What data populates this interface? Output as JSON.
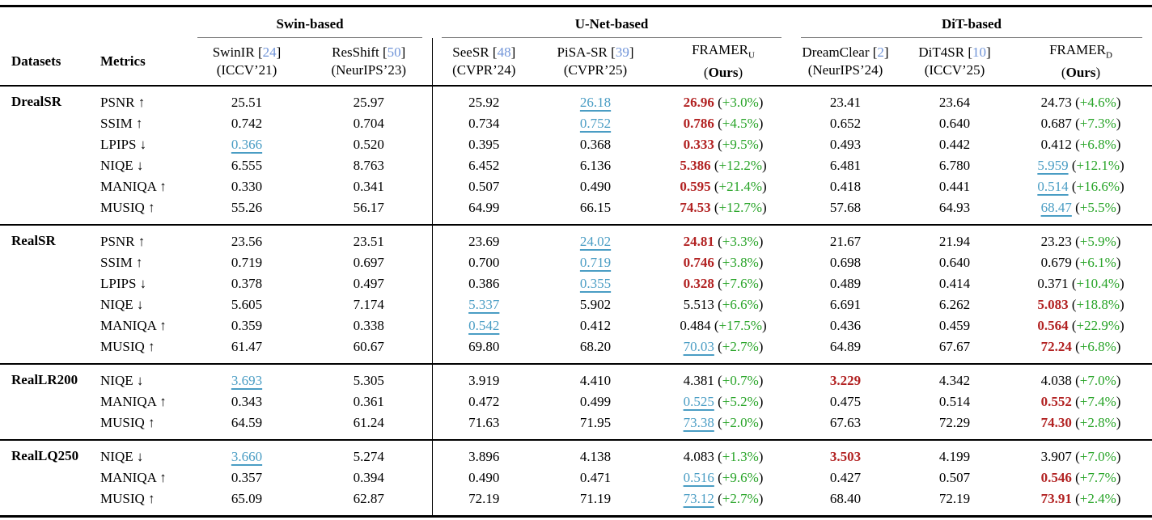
{
  "colors": {
    "best": "#b22222",
    "second": "#4a9dc4",
    "percent": "#28a428",
    "citation": "#7094d8"
  },
  "table": {
    "corner": {
      "datasets": "Datasets",
      "metrics": "Metrics"
    },
    "groups": [
      {
        "label": "Swin-based",
        "span": 2
      },
      {
        "label": "U-Net-based",
        "span": 3
      },
      {
        "label": "DiT-based",
        "span": 3
      }
    ],
    "methods": [
      {
        "name": "SwinIR",
        "cite": "24",
        "venue": "(ICCV’21)"
      },
      {
        "name": "ResShift",
        "cite": "50",
        "venue": "(NeurIPS’23)"
      },
      {
        "name": "SeeSR",
        "cite": "48",
        "venue": "(CVPR’24)"
      },
      {
        "name": "PiSA-SR",
        "cite": "39",
        "venue": "(CVPR’25)"
      },
      {
        "name": "FRAMER",
        "subscript": "U",
        "venue_prefix": "(",
        "venue_bold": "Ours",
        "venue_suffix": ")"
      },
      {
        "name": "DreamClear",
        "cite": "2",
        "venue": "(NeurIPS’24)"
      },
      {
        "name": "DiT4SR",
        "cite": "10",
        "venue": "(ICCV’25)"
      },
      {
        "name": "FRAMER",
        "subscript": "D",
        "venue_prefix": "(",
        "venue_bold": "Ours",
        "venue_suffix": ")"
      }
    ],
    "sections": [
      {
        "dataset": "DrealSR",
        "rows": [
          {
            "metric": "PSNR",
            "arrow": "↑",
            "cells": [
              {
                "value": "25.51"
              },
              {
                "value": "25.97"
              },
              {
                "value": "25.92"
              },
              {
                "value": "26.18",
                "mark": "second"
              },
              {
                "value": "26.96",
                "mark": "best",
                "pct": "+3.0%"
              },
              {
                "value": "23.41"
              },
              {
                "value": "23.64"
              },
              {
                "value": "24.73",
                "pct": "+4.6%"
              }
            ]
          },
          {
            "metric": "SSIM",
            "arrow": "↑",
            "cells": [
              {
                "value": "0.742"
              },
              {
                "value": "0.704"
              },
              {
                "value": "0.734"
              },
              {
                "value": "0.752",
                "mark": "second"
              },
              {
                "value": "0.786",
                "mark": "best",
                "pct": "+4.5%"
              },
              {
                "value": "0.652"
              },
              {
                "value": "0.640"
              },
              {
                "value": "0.687",
                "pct": "+7.3%"
              }
            ]
          },
          {
            "metric": "LPIPS",
            "arrow": "↓",
            "cells": [
              {
                "value": "0.366",
                "mark": "second"
              },
              {
                "value": "0.520"
              },
              {
                "value": "0.395"
              },
              {
                "value": "0.368"
              },
              {
                "value": "0.333",
                "mark": "best",
                "pct": "+9.5%"
              },
              {
                "value": "0.493"
              },
              {
                "value": "0.442"
              },
              {
                "value": "0.412",
                "pct": "+6.8%"
              }
            ]
          },
          {
            "metric": "NIQE",
            "arrow": "↓",
            "cells": [
              {
                "value": "6.555"
              },
              {
                "value": "8.763"
              },
              {
                "value": "6.452"
              },
              {
                "value": "6.136"
              },
              {
                "value": "5.386",
                "mark": "best",
                "pct": "+12.2%"
              },
              {
                "value": "6.481"
              },
              {
                "value": "6.780"
              },
              {
                "value": "5.959",
                "mark": "second",
                "pct": "+12.1%"
              }
            ]
          },
          {
            "metric": "MANIQA",
            "arrow": "↑",
            "cells": [
              {
                "value": "0.330"
              },
              {
                "value": "0.341"
              },
              {
                "value": "0.507"
              },
              {
                "value": "0.490"
              },
              {
                "value": "0.595",
                "mark": "best",
                "pct": "+21.4%"
              },
              {
                "value": "0.418"
              },
              {
                "value": "0.441"
              },
              {
                "value": "0.514",
                "mark": "second",
                "pct": "+16.6%"
              }
            ]
          },
          {
            "metric": "MUSIQ",
            "arrow": "↑",
            "cells": [
              {
                "value": "55.26"
              },
              {
                "value": "56.17"
              },
              {
                "value": "64.99"
              },
              {
                "value": "66.15"
              },
              {
                "value": "74.53",
                "mark": "best",
                "pct": "+12.7%"
              },
              {
                "value": "57.68"
              },
              {
                "value": "64.93"
              },
              {
                "value": "68.47",
                "mark": "second",
                "pct": "+5.5%"
              }
            ]
          }
        ]
      },
      {
        "dataset": "RealSR",
        "rows": [
          {
            "metric": "PSNR",
            "arrow": "↑",
            "cells": [
              {
                "value": "23.56"
              },
              {
                "value": "23.51"
              },
              {
                "value": "23.69"
              },
              {
                "value": "24.02",
                "mark": "second"
              },
              {
                "value": "24.81",
                "mark": "best",
                "pct": "+3.3%"
              },
              {
                "value": "21.67"
              },
              {
                "value": "21.94"
              },
              {
                "value": "23.23",
                "pct": "+5.9%"
              }
            ]
          },
          {
            "metric": "SSIM",
            "arrow": "↑",
            "cells": [
              {
                "value": "0.719"
              },
              {
                "value": "0.697"
              },
              {
                "value": "0.700"
              },
              {
                "value": "0.719",
                "mark": "second"
              },
              {
                "value": "0.746",
                "mark": "best",
                "pct": "+3.8%"
              },
              {
                "value": "0.698"
              },
              {
                "value": "0.640"
              },
              {
                "value": "0.679",
                "pct": "+6.1%"
              }
            ]
          },
          {
            "metric": "LPIPS",
            "arrow": "↓",
            "cells": [
              {
                "value": "0.378"
              },
              {
                "value": "0.497"
              },
              {
                "value": "0.386"
              },
              {
                "value": "0.355",
                "mark": "second"
              },
              {
                "value": "0.328",
                "mark": "best",
                "pct": "+7.6%"
              },
              {
                "value": "0.489"
              },
              {
                "value": "0.414"
              },
              {
                "value": "0.371",
                "pct": "+10.4%"
              }
            ]
          },
          {
            "metric": "NIQE",
            "arrow": "↓",
            "cells": [
              {
                "value": "5.605"
              },
              {
                "value": "7.174"
              },
              {
                "value": "5.337",
                "mark": "second"
              },
              {
                "value": "5.902"
              },
              {
                "value": "5.513",
                "pct": "+6.6%"
              },
              {
                "value": "6.691"
              },
              {
                "value": "6.262"
              },
              {
                "value": "5.083",
                "mark": "best",
                "pct": "+18.8%"
              }
            ]
          },
          {
            "metric": "MANIQA",
            "arrow": "↑",
            "cells": [
              {
                "value": "0.359"
              },
              {
                "value": "0.338"
              },
              {
                "value": "0.542",
                "mark": "second"
              },
              {
                "value": "0.412"
              },
              {
                "value": "0.484",
                "pct": "+17.5%"
              },
              {
                "value": "0.436"
              },
              {
                "value": "0.459"
              },
              {
                "value": "0.564",
                "mark": "best",
                "pct": "+22.9%"
              }
            ]
          },
          {
            "metric": "MUSIQ",
            "arrow": "↑",
            "cells": [
              {
                "value": "61.47"
              },
              {
                "value": "60.67"
              },
              {
                "value": "69.80"
              },
              {
                "value": "68.20"
              },
              {
                "value": "70.03",
                "mark": "second",
                "pct": "+2.7%"
              },
              {
                "value": "64.89"
              },
              {
                "value": "67.67"
              },
              {
                "value": "72.24",
                "mark": "best",
                "pct": "+6.8%"
              }
            ]
          }
        ]
      },
      {
        "dataset": "RealLR200",
        "rows": [
          {
            "metric": "NIQE",
            "arrow": "↓",
            "cells": [
              {
                "value": "3.693",
                "mark": "second"
              },
              {
                "value": "5.305"
              },
              {
                "value": "3.919"
              },
              {
                "value": "4.410"
              },
              {
                "value": "4.381",
                "pct": "+0.7%"
              },
              {
                "value": "3.229",
                "mark": "best"
              },
              {
                "value": "4.342"
              },
              {
                "value": "4.038",
                "pct": "+7.0%"
              }
            ]
          },
          {
            "metric": "MANIQA",
            "arrow": "↑",
            "cells": [
              {
                "value": "0.343"
              },
              {
                "value": "0.361"
              },
              {
                "value": "0.472"
              },
              {
                "value": "0.499"
              },
              {
                "value": "0.525",
                "mark": "second",
                "pct": "+5.2%"
              },
              {
                "value": "0.475"
              },
              {
                "value": "0.514"
              },
              {
                "value": "0.552",
                "mark": "best",
                "pct": "+7.4%"
              }
            ]
          },
          {
            "metric": "MUSIQ",
            "arrow": "↑",
            "cells": [
              {
                "value": "64.59"
              },
              {
                "value": "61.24"
              },
              {
                "value": "71.63"
              },
              {
                "value": "71.95"
              },
              {
                "value": "73.38",
                "mark": "second",
                "pct": "+2.0%"
              },
              {
                "value": "67.63"
              },
              {
                "value": "72.29"
              },
              {
                "value": "74.30",
                "mark": "best",
                "pct": "+2.8%"
              }
            ]
          }
        ]
      },
      {
        "dataset": "RealLQ250",
        "rows": [
          {
            "metric": "NIQE",
            "arrow": "↓",
            "cells": [
              {
                "value": "3.660",
                "mark": "second"
              },
              {
                "value": "5.274"
              },
              {
                "value": "3.896"
              },
              {
                "value": "4.138"
              },
              {
                "value": "4.083",
                "pct": "+1.3%"
              },
              {
                "value": "3.503",
                "mark": "best"
              },
              {
                "value": "4.199"
              },
              {
                "value": "3.907",
                "pct": "+7.0%"
              }
            ]
          },
          {
            "metric": "MANIQA",
            "arrow": "↑",
            "cells": [
              {
                "value": "0.357"
              },
              {
                "value": "0.394"
              },
              {
                "value": "0.490"
              },
              {
                "value": "0.471"
              },
              {
                "value": "0.516",
                "mark": "second",
                "pct": "+9.6%"
              },
              {
                "value": "0.427"
              },
              {
                "value": "0.507"
              },
              {
                "value": "0.546",
                "mark": "best",
                "pct": "+7.7%"
              }
            ]
          },
          {
            "metric": "MUSIQ",
            "arrow": "↑",
            "cells": [
              {
                "value": "65.09"
              },
              {
                "value": "62.87"
              },
              {
                "value": "72.19"
              },
              {
                "value": "71.19"
              },
              {
                "value": "73.12",
                "mark": "second",
                "pct": "+2.7%"
              },
              {
                "value": "68.40"
              },
              {
                "value": "72.19"
              },
              {
                "value": "73.91",
                "mark": "best",
                "pct": "+2.4%"
              }
            ]
          }
        ]
      }
    ]
  }
}
